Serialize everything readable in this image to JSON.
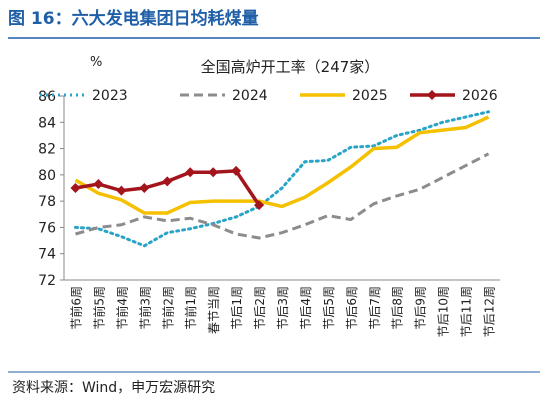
{
  "chart_data": {
    "type": "line",
    "header": "图 16：六大发电集团日均耗煤量",
    "title": "全国高炉开工率（247家）",
    "y_unit": "%",
    "categories": [
      "节前6周",
      "节前5周",
      "节前4周",
      "节前3周",
      "节前2周",
      "节前1周",
      "春节当周",
      "节后1周",
      "节后2周",
      "节后3周",
      "节后4周",
      "节后5周",
      "节后6周",
      "节后7周",
      "节后8周",
      "节后9周",
      "节后10周",
      "节后11周",
      "节后12周"
    ],
    "series": [
      {
        "name": "2023",
        "color": "#29a3c7",
        "style": "dotted",
        "values": [
          76.0,
          75.9,
          75.3,
          74.6,
          75.6,
          75.9,
          76.3,
          76.8,
          77.6,
          79.0,
          81.0,
          81.1,
          82.1,
          82.2,
          83.0,
          83.4,
          84.0,
          84.4,
          84.8
        ]
      },
      {
        "name": "2024",
        "color": "#8c8c8c",
        "style": "dashed",
        "values": [
          75.5,
          76.0,
          76.2,
          76.8,
          76.5,
          76.7,
          76.2,
          75.5,
          75.2,
          75.6,
          76.2,
          76.9,
          76.6,
          77.8,
          78.4,
          78.9,
          79.8,
          80.7,
          81.6
        ]
      },
      {
        "name": "2025",
        "color": "#f5c000",
        "style": "solid",
        "values": [
          79.6,
          78.6,
          78.1,
          77.1,
          77.1,
          77.9,
          78.0,
          78.0,
          78.0,
          77.6,
          78.3,
          79.4,
          80.6,
          82.0,
          82.1,
          83.2,
          83.4,
          83.6,
          84.4
        ]
      },
      {
        "name": "2026",
        "color": "#a3141c",
        "style": "marker",
        "values": [
          79.0,
          79.3,
          78.8,
          79.0,
          79.5,
          80.2,
          80.2,
          80.3,
          77.7,
          null,
          null,
          null,
          null,
          null,
          null,
          null,
          null,
          null,
          null
        ]
      }
    ],
    "ylim": [
      72,
      86
    ],
    "yticks": [
      72,
      74,
      76,
      78,
      80,
      82,
      84,
      86
    ],
    "source": "资料来源：Wind，申万宏源研究"
  }
}
